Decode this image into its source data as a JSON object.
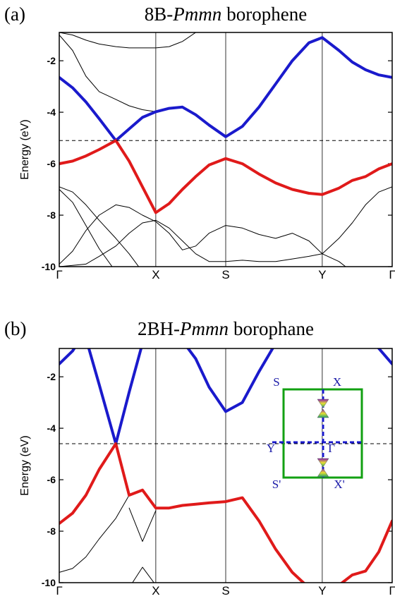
{
  "chart_data": [
    {
      "type": "line",
      "panel_label": "(a)",
      "title": {
        "prefix": "8B-",
        "italic": "Pmmn",
        "rest": "borophene"
      },
      "ylabel": "Energy (eV)",
      "xlim": [
        0,
        1
      ],
      "ylim": [
        -10,
        -0.9
      ],
      "xticks": [
        {
          "value": 0,
          "label": "Γ"
        },
        {
          "value": 0.29,
          "label": "X"
        },
        {
          "value": 0.5,
          "label": "S"
        },
        {
          "value": 0.79,
          "label": "Y"
        },
        {
          "value": 1,
          "label": "Γ"
        }
      ],
      "yticks": [
        -2,
        -4,
        -6,
        -8,
        -10
      ],
      "fermi_level": -5.1,
      "x": [
        0,
        0.04,
        0.08,
        0.12,
        0.17,
        0.21,
        0.25,
        0.29,
        0.33,
        0.37,
        0.41,
        0.45,
        0.5,
        0.55,
        0.6,
        0.65,
        0.7,
        0.75,
        0.79,
        0.84,
        0.88,
        0.92,
        0.96,
        1
      ],
      "series": [
        {
          "color": "#000000",
          "width": 1,
          "values": [
            -0.9,
            -1.0,
            -1.2,
            -1.35,
            -1.45,
            -1.5,
            -1.5,
            -1.5,
            -1.45,
            -1.25,
            -0.9,
            null,
            null,
            null,
            null,
            null,
            null,
            null,
            null,
            null,
            null,
            null,
            null,
            null
          ]
        },
        {
          "color": "#000000",
          "width": 1,
          "values": [
            -1.0,
            -1.6,
            -2.6,
            -3.2,
            -3.5,
            -3.75,
            -3.9,
            -3.98,
            null,
            null,
            null,
            null,
            null,
            null,
            null,
            null,
            null,
            null,
            null,
            null,
            null,
            null,
            null,
            null
          ]
        },
        {
          "color": "#000000",
          "width": 1,
          "values": [
            -6.9,
            -7.1,
            -7.6,
            -8.2,
            -8.9,
            -9.5,
            -10.2,
            null,
            null,
            null,
            null,
            null,
            null,
            null,
            null,
            null,
            null,
            null,
            null,
            null,
            null,
            null,
            null,
            null
          ]
        },
        {
          "color": "#000000",
          "width": 1,
          "values": [
            -7.0,
            -7.5,
            -8.4,
            -9.3,
            -10.2,
            null,
            null,
            null,
            null,
            null,
            null,
            null,
            null,
            null,
            null,
            null,
            null,
            null,
            null,
            null,
            null,
            null,
            null,
            null
          ]
        },
        {
          "color": "#000000",
          "width": 1,
          "values": [
            -9.9,
            -9.4,
            -8.6,
            -8.0,
            -7.6,
            -7.7,
            -8.0,
            -8.25,
            -8.7,
            -9.35,
            -9.2,
            -8.7,
            -8.4,
            -8.5,
            -8.75,
            -8.9,
            -8.7,
            -9.0,
            -9.5,
            -9.8,
            -10.2,
            null,
            null,
            null
          ]
        },
        {
          "color": "#000000",
          "width": 1,
          "values": [
            -10.0,
            -9.95,
            -9.9,
            -9.6,
            -9.2,
            -8.7,
            -8.3,
            -8.2,
            -8.5,
            -9.0,
            -9.5,
            -9.8,
            -9.8,
            -9.75,
            -9.8,
            -9.8,
            -9.7,
            -9.6,
            -9.5,
            -8.9,
            -8.3,
            -7.6,
            -7.1,
            -6.9
          ]
        },
        {
          "color": "#1a1acc",
          "width": 4,
          "values": [
            -2.65,
            -3.05,
            -3.6,
            -4.25,
            -5.1,
            -4.65,
            -4.2,
            -3.98,
            -3.85,
            -3.8,
            -4.1,
            -4.5,
            -4.95,
            -4.55,
            -3.8,
            -2.9,
            -2.0,
            -1.3,
            -1.1,
            -1.6,
            -2.05,
            -2.35,
            -2.55,
            -2.65
          ]
        },
        {
          "color": "#e01a1a",
          "width": 4,
          "values": [
            -6.0,
            -5.9,
            -5.7,
            -5.45,
            -5.1,
            -5.9,
            -6.9,
            -7.9,
            -7.55,
            -7.0,
            -6.5,
            -6.05,
            -5.8,
            -6.0,
            -6.4,
            -6.75,
            -7.0,
            -7.15,
            -7.2,
            -6.95,
            -6.65,
            -6.5,
            -6.2,
            -6.0
          ]
        }
      ]
    },
    {
      "type": "line",
      "panel_label": "(b)",
      "title": {
        "prefix": "2BH-",
        "italic": "Pmmn",
        "rest": "borophane"
      },
      "ylabel": "Energy (eV)",
      "xlim": [
        0,
        1
      ],
      "ylim": [
        -10,
        -0.9
      ],
      "xticks": [
        {
          "value": 0,
          "label": "Γ"
        },
        {
          "value": 0.29,
          "label": "X"
        },
        {
          "value": 0.5,
          "label": "S"
        },
        {
          "value": 0.79,
          "label": "Y"
        },
        {
          "value": 1,
          "label": "Γ"
        }
      ],
      "yticks": [
        -2,
        -4,
        -6,
        -8,
        -10
      ],
      "fermi_level": -4.6,
      "x": [
        0,
        0.04,
        0.08,
        0.12,
        0.17,
        0.21,
        0.25,
        0.29,
        0.33,
        0.37,
        0.41,
        0.45,
        0.5,
        0.55,
        0.6,
        0.65,
        0.7,
        0.75,
        0.79,
        0.84,
        0.88,
        0.92,
        0.96,
        1
      ],
      "series": [
        {
          "color": "#000000",
          "width": 1,
          "values": [
            -9.6,
            -9.45,
            -9.0,
            -8.3,
            -7.5,
            -6.6,
            null,
            null,
            null,
            null,
            null,
            null,
            null,
            null,
            null,
            null,
            null,
            null,
            null,
            null,
            null,
            null,
            null,
            null
          ]
        },
        {
          "color": "#000000",
          "width": 1,
          "values": [
            null,
            null,
            null,
            null,
            null,
            -7.1,
            -8.4,
            -7.2,
            null,
            null,
            null,
            null,
            null,
            null,
            null,
            null,
            null,
            null,
            null,
            null,
            null,
            null,
            null,
            null
          ]
        },
        {
          "color": "#000000",
          "width": 1,
          "values": [
            null,
            null,
            null,
            null,
            null,
            -10.2,
            -9.4,
            -10.1,
            null,
            null,
            null,
            null,
            null,
            null,
            null,
            null,
            null,
            null,
            null,
            null,
            null,
            null,
            null,
            null
          ]
        },
        {
          "color": "#1a1acc",
          "width": 4,
          "values": [
            -1.5,
            -1.0,
            -0.2,
            null,
            null,
            null,
            null,
            null,
            null,
            null,
            null,
            null,
            null,
            null,
            null,
            null,
            null,
            null,
            null,
            null,
            null,
            null,
            null,
            null
          ]
        },
        {
          "color": "#1a1acc",
          "width": 4,
          "values": [
            null,
            null,
            -0.5,
            -2.3,
            -4.6,
            -2.6,
            -0.7,
            null,
            null,
            null,
            null,
            null,
            null,
            null,
            null,
            null,
            null,
            null,
            null,
            null,
            null,
            null,
            null,
            null
          ]
        },
        {
          "color": "#1a1acc",
          "width": 4,
          "values": [
            null,
            null,
            null,
            null,
            null,
            null,
            null,
            null,
            null,
            -0.6,
            -1.3,
            -2.4,
            -3.35,
            -3.0,
            -1.8,
            -0.7,
            null,
            null,
            null,
            null,
            null,
            null,
            null,
            null
          ]
        },
        {
          "color": "#1a1acc",
          "width": 4,
          "values": [
            null,
            null,
            null,
            null,
            null,
            null,
            null,
            null,
            null,
            null,
            null,
            null,
            null,
            null,
            null,
            null,
            null,
            null,
            null,
            null,
            null,
            -0.3,
            -0.9,
            -1.5
          ]
        },
        {
          "color": "#e01a1a",
          "width": 4,
          "values": [
            -7.7,
            -7.3,
            -6.6,
            -5.6,
            -4.6,
            -6.6,
            -6.4,
            -7.1,
            -7.1,
            -7.0,
            -6.95,
            -6.9,
            -6.85,
            -6.7,
            -7.6,
            -8.7,
            -9.6,
            -10.2,
            null,
            null,
            null,
            null,
            null,
            null
          ]
        },
        {
          "color": "#e01a1a",
          "width": 4,
          "values": [
            null,
            null,
            null,
            null,
            null,
            null,
            null,
            null,
            null,
            null,
            null,
            null,
            null,
            null,
            null,
            null,
            null,
            null,
            null,
            -10.1,
            -9.7,
            -9.55,
            -8.8,
            -7.6
          ]
        }
      ],
      "inset_labels": [
        "S",
        "X",
        "Y",
        "Γ",
        "S'",
        "X'"
      ]
    }
  ]
}
